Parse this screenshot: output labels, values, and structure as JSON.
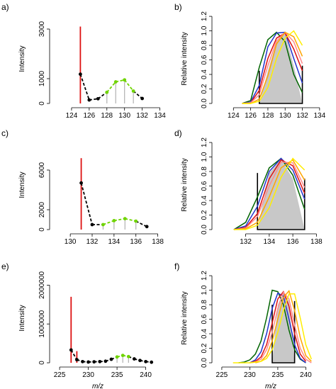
{
  "figure_xlabel": "m/z",
  "chart_data": [
    {
      "id": "a",
      "panel_label": "a)",
      "type": "stem",
      "ylabel": "Intensity",
      "xlim": [
        122,
        135
      ],
      "ylim": [
        0,
        3600
      ],
      "xticks": [
        124,
        126,
        128,
        130,
        132,
        134
      ],
      "yticks": [
        0,
        1000,
        3000
      ],
      "red_stems": [
        {
          "x": 125,
          "y": 3100
        }
      ],
      "points": [
        {
          "x": 125,
          "y": 1180,
          "color": "#000000"
        },
        {
          "x": 126,
          "y": 140,
          "color": "#000000"
        },
        {
          "x": 127,
          "y": 190,
          "color": "#000000"
        },
        {
          "x": 128,
          "y": 450,
          "color": "#6fd400"
        },
        {
          "x": 129,
          "y": 870,
          "color": "#6fd400"
        },
        {
          "x": 130,
          "y": 950,
          "color": "#6fd400"
        },
        {
          "x": 131,
          "y": 500,
          "color": "#6fd400"
        },
        {
          "x": 132,
          "y": 200,
          "color": "#000000"
        }
      ]
    },
    {
      "id": "b",
      "panel_label": "b)",
      "type": "line",
      "ylabel": "Relative intensity",
      "xlim": [
        122,
        135
      ],
      "ylim": [
        0,
        1.23
      ],
      "xticks": [
        124,
        126,
        128,
        130,
        132,
        134
      ],
      "yticks": [
        0.0,
        0.2,
        0.4,
        0.6,
        0.8,
        1.0,
        1.2
      ],
      "shaded_region": {
        "x": [
          127,
          128,
          129,
          130,
          131,
          132
        ],
        "y": [
          0.0,
          0.45,
          0.85,
          0.97,
          0.52,
          0.0
        ]
      },
      "series": [
        {
          "color": "#006400",
          "x": [
            125,
            126,
            127,
            128,
            129,
            130,
            131,
            132
          ],
          "y": [
            0.0,
            0.04,
            0.5,
            0.88,
            0.98,
            0.85,
            0.4,
            0.15
          ]
        },
        {
          "color": "#2233cc",
          "x": [
            125,
            126,
            127,
            128,
            129,
            130,
            131,
            132
          ],
          "y": [
            0.0,
            0.02,
            0.25,
            0.78,
            0.97,
            0.98,
            0.62,
            0.28
          ]
        },
        {
          "color": "#e01010",
          "x": [
            125,
            126,
            127,
            128,
            129,
            130,
            131,
            132
          ],
          "y": [
            0.0,
            0.01,
            0.18,
            0.62,
            0.9,
            0.97,
            0.75,
            0.45
          ]
        },
        {
          "color": "#ff8c8c",
          "x": [
            125,
            126,
            127,
            128,
            129,
            130,
            131,
            132
          ],
          "y": [
            0.0,
            0.01,
            0.12,
            0.52,
            0.86,
            0.98,
            0.85,
            0.55
          ]
        },
        {
          "color": "#ffa500",
          "x": [
            125,
            126,
            127,
            128,
            129,
            130,
            131,
            132
          ],
          "y": [
            0.0,
            0.0,
            0.06,
            0.38,
            0.82,
            0.98,
            0.92,
            0.65
          ]
        },
        {
          "color": "#ffee00",
          "x": [
            125,
            126,
            127,
            128,
            129,
            130,
            131,
            132
          ],
          "y": [
            0.0,
            0.0,
            0.03,
            0.22,
            0.62,
            0.9,
            1.0,
            0.8
          ]
        }
      ]
    },
    {
      "id": "c",
      "panel_label": "c)",
      "type": "stem",
      "ylabel": "Intensity",
      "xlim": [
        128.5,
        139
      ],
      "ylim": [
        0,
        9000
      ],
      "xticks": [
        130,
        132,
        134,
        136,
        138
      ],
      "yticks": [
        0,
        2000,
        6000
      ],
      "red_stems": [
        {
          "x": 131,
          "y": 7200
        }
      ],
      "points": [
        {
          "x": 131,
          "y": 4700,
          "color": "#000000"
        },
        {
          "x": 132,
          "y": 500,
          "color": "#000000"
        },
        {
          "x": 133,
          "y": 500,
          "color": "#6fd400"
        },
        {
          "x": 134,
          "y": 900,
          "color": "#6fd400"
        },
        {
          "x": 135,
          "y": 1100,
          "color": "#6fd400"
        },
        {
          "x": 136,
          "y": 850,
          "color": "#6fd400"
        },
        {
          "x": 137,
          "y": 300,
          "color": "#000000"
        }
      ]
    },
    {
      "id": "d",
      "panel_label": "d)",
      "type": "line",
      "ylabel": "Relative intensity",
      "xlim": [
        129.5,
        139
      ],
      "ylim": [
        0,
        1.23
      ],
      "xticks": [
        132,
        134,
        136,
        138
      ],
      "yticks": [
        0.0,
        0.2,
        0.4,
        0.6,
        0.8,
        1.0,
        1.2
      ],
      "shaded_region": {
        "x": [
          133,
          134,
          135,
          136,
          137
        ],
        "y": [
          0.0,
          0.78,
          0.97,
          0.7,
          0.0
        ]
      },
      "series": [
        {
          "color": "#006400",
          "x": [
            131,
            132,
            133,
            134,
            135,
            136,
            137
          ],
          "y": [
            0.0,
            0.1,
            0.45,
            0.85,
            0.98,
            0.75,
            0.28
          ]
        },
        {
          "color": "#2233cc",
          "x": [
            131,
            132,
            133,
            134,
            135,
            136,
            137
          ],
          "y": [
            0.0,
            0.05,
            0.32,
            0.8,
            0.98,
            0.82,
            0.42
          ]
        },
        {
          "color": "#e01010",
          "x": [
            131,
            132,
            133,
            134,
            135,
            136,
            137
          ],
          "y": [
            0.0,
            0.03,
            0.22,
            0.7,
            0.96,
            0.88,
            0.5
          ]
        },
        {
          "color": "#ff8c8c",
          "x": [
            131,
            132,
            133,
            134,
            135,
            136,
            137
          ],
          "y": [
            0.0,
            0.02,
            0.18,
            0.6,
            0.93,
            0.92,
            0.58
          ]
        },
        {
          "color": "#ffa500",
          "x": [
            131,
            132,
            133,
            134,
            135,
            136,
            137
          ],
          "y": [
            0.0,
            0.01,
            0.1,
            0.45,
            0.85,
            0.96,
            0.68
          ]
        },
        {
          "color": "#ffee00",
          "x": [
            131,
            132,
            133,
            134,
            135,
            136,
            137
          ],
          "y": [
            0.0,
            0.0,
            0.06,
            0.3,
            0.72,
            0.98,
            0.82
          ]
        }
      ]
    },
    {
      "id": "e",
      "panel_label": "e)",
      "type": "stem",
      "ylabel": "Intensity",
      "xlim": [
        224,
        244
      ],
      "ylim": [
        0,
        2300000
      ],
      "xticks": [
        225,
        230,
        235,
        240
      ],
      "yticks": [
        0,
        1000000,
        2000000
      ],
      "red_stems": [
        {
          "x": 227,
          "y": 1700000
        },
        {
          "x": 228,
          "y": 300000
        }
      ],
      "points": [
        {
          "x": 227,
          "y": 330000,
          "color": "#000000"
        },
        {
          "x": 228,
          "y": 80000,
          "color": "#000000"
        },
        {
          "x": 229,
          "y": 30000,
          "color": "#000000"
        },
        {
          "x": 230,
          "y": 20000,
          "color": "#000000"
        },
        {
          "x": 231,
          "y": 25000,
          "color": "#000000"
        },
        {
          "x": 232,
          "y": 30000,
          "color": "#000000"
        },
        {
          "x": 233,
          "y": 40000,
          "color": "#000000"
        },
        {
          "x": 234,
          "y": 90000,
          "color": "#000000"
        },
        {
          "x": 235,
          "y": 150000,
          "color": "#6fd400"
        },
        {
          "x": 236,
          "y": 190000,
          "color": "#6fd400"
        },
        {
          "x": 237,
          "y": 160000,
          "color": "#6fd400"
        },
        {
          "x": 238,
          "y": 100000,
          "color": "#000000"
        },
        {
          "x": 239,
          "y": 60000,
          "color": "#000000"
        },
        {
          "x": 240,
          "y": 30000,
          "color": "#000000"
        },
        {
          "x": 241,
          "y": 15000,
          "color": "#000000"
        }
      ]
    },
    {
      "id": "f",
      "panel_label": "f)",
      "type": "line",
      "ylabel": "Relative intensity",
      "xlim": [
        224,
        244
      ],
      "ylim": [
        0,
        1.23
      ],
      "xticks": [
        225,
        230,
        235,
        240
      ],
      "yticks": [
        0.0,
        0.2,
        0.4,
        0.6,
        0.8,
        1.0,
        1.2
      ],
      "shaded_region": {
        "x": [
          234,
          235,
          236,
          237,
          238
        ],
        "y": [
          0.0,
          0.8,
          0.97,
          0.85,
          0.0
        ]
      },
      "series": [
        {
          "color": "#006400",
          "x": [
            228,
            229,
            230,
            231,
            232,
            233,
            234,
            235,
            236,
            237,
            238,
            239,
            240
          ],
          "y": [
            0.0,
            0.01,
            0.04,
            0.12,
            0.3,
            0.62,
            1.0,
            0.98,
            0.8,
            0.45,
            0.18,
            0.05,
            0.0
          ]
        },
        {
          "color": "#2233cc",
          "x": [
            230,
            231,
            232,
            233,
            234,
            235,
            236,
            237,
            238,
            239,
            240
          ],
          "y": [
            0.0,
            0.04,
            0.15,
            0.4,
            0.75,
            0.96,
            0.92,
            0.6,
            0.25,
            0.06,
            0.0
          ]
        },
        {
          "color": "#e01010",
          "x": [
            230,
            231,
            232,
            233,
            234,
            235,
            236,
            237,
            238,
            239,
            240
          ],
          "y": [
            0.0,
            0.02,
            0.08,
            0.25,
            0.55,
            0.88,
            0.98,
            0.78,
            0.4,
            0.12,
            0.02
          ]
        },
        {
          "color": "#ff8c8c",
          "x": [
            230,
            231,
            232,
            233,
            234,
            235,
            236,
            237,
            238,
            239,
            240,
            241
          ],
          "y": [
            0.0,
            0.01,
            0.05,
            0.18,
            0.42,
            0.75,
            0.97,
            0.88,
            0.52,
            0.2,
            0.05,
            0.0
          ]
        },
        {
          "color": "#ffa500",
          "x": [
            231,
            232,
            233,
            234,
            235,
            236,
            237,
            238,
            239,
            240,
            241
          ],
          "y": [
            0.0,
            0.02,
            0.1,
            0.3,
            0.6,
            0.9,
            0.99,
            0.72,
            0.35,
            0.1,
            0.02
          ]
        },
        {
          "color": "#ffee00",
          "x": [
            227,
            228,
            229,
            230,
            231,
            232,
            233,
            234,
            235,
            236,
            237,
            238,
            239,
            240,
            241
          ],
          "y": [
            0.0,
            0.0,
            0.0,
            0.0,
            0.01,
            0.02,
            0.06,
            0.18,
            0.42,
            0.72,
            0.95,
            0.95,
            0.62,
            0.25,
            0.05
          ]
        }
      ]
    }
  ]
}
